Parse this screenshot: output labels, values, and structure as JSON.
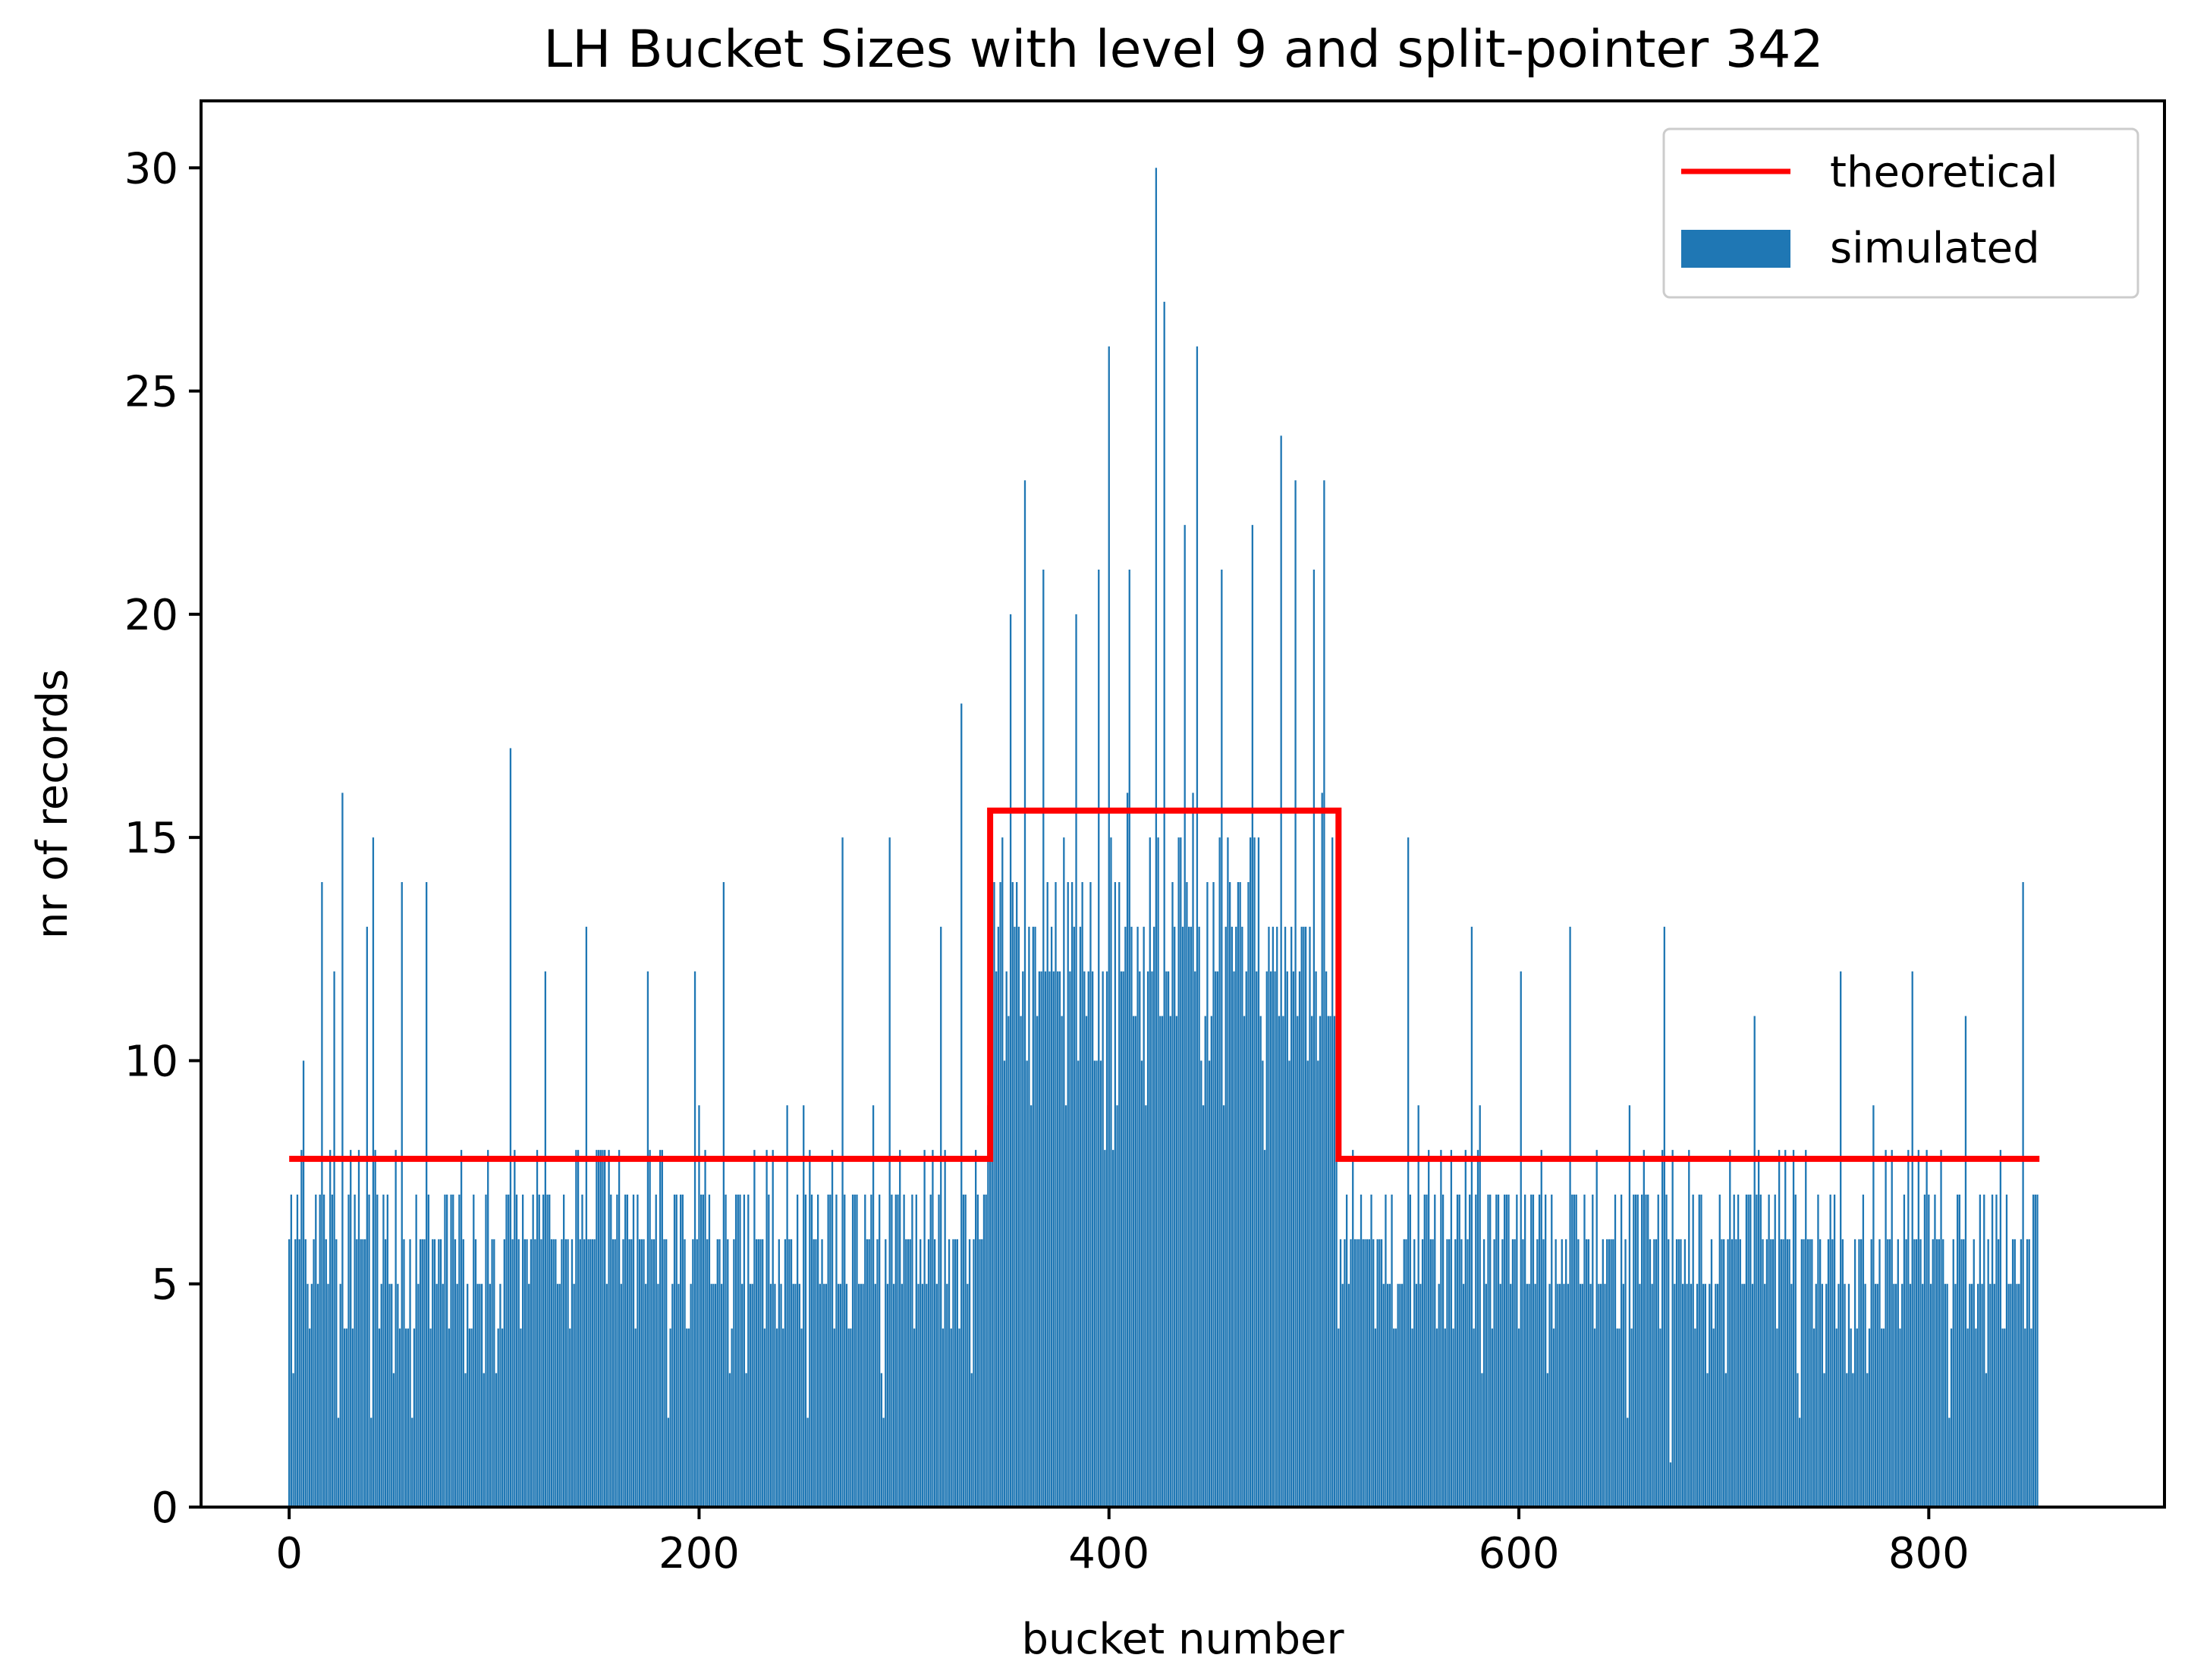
{
  "chart_data": {
    "type": "bar",
    "title": "LH Bucket Sizes with level 9 and split-pointer 342",
    "xlabel": "bucket number",
    "ylabel": "nr of records",
    "xlim": [
      -43,
      915
    ],
    "ylim": [
      0,
      31.5
    ],
    "xticks": [
      "0",
      "200",
      "400",
      "600",
      "800"
    ],
    "xtick_values": [
      0,
      200,
      400,
      600,
      800
    ],
    "yticks": [
      "0",
      "5",
      "10",
      "15",
      "20",
      "25",
      "30"
    ],
    "ytick_values": [
      0,
      5,
      10,
      15,
      20,
      25,
      30
    ],
    "grid": false,
    "legend_position": "top-right",
    "bucket_count": 854,
    "colors": {
      "bars": "#1f77b4",
      "line": "#ff0000"
    },
    "series": [
      {
        "name": "theoretical",
        "type": "step-line",
        "segments": [
          {
            "x_start": 0,
            "x_end": 342,
            "y": 7.8
          },
          {
            "x_start": 342,
            "x_end": 512,
            "y": 15.6
          },
          {
            "x_start": 512,
            "x_end": 854,
            "y": 7.8
          }
        ]
      },
      {
        "name": "simulated",
        "type": "bar",
        "regions": [
          {
            "x_start": 0,
            "x_end": 342,
            "floor": 3,
            "typical_high": 9,
            "mean": 7.8
          },
          {
            "x_start": 342,
            "x_end": 512,
            "floor": 8,
            "typical_high": 17,
            "mean": 15.6
          },
          {
            "x_start": 512,
            "x_end": 854,
            "floor": 3,
            "typical_high": 9,
            "mean": 7.8
          }
        ],
        "peaks": [
          {
            "x": 0,
            "y": 6
          },
          {
            "x": 2,
            "y": 3
          },
          {
            "x": 4,
            "y": 7
          },
          {
            "x": 7,
            "y": 10
          },
          {
            "x": 10,
            "y": 4
          },
          {
            "x": 16,
            "y": 14
          },
          {
            "x": 22,
            "y": 12
          },
          {
            "x": 24,
            "y": 2
          },
          {
            "x": 26,
            "y": 16
          },
          {
            "x": 38,
            "y": 13
          },
          {
            "x": 40,
            "y": 2
          },
          {
            "x": 41,
            "y": 15
          },
          {
            "x": 55,
            "y": 14
          },
          {
            "x": 60,
            "y": 2
          },
          {
            "x": 67,
            "y": 14
          },
          {
            "x": 86,
            "y": 3
          },
          {
            "x": 108,
            "y": 17
          },
          {
            "x": 125,
            "y": 12
          },
          {
            "x": 145,
            "y": 13
          },
          {
            "x": 175,
            "y": 12
          },
          {
            "x": 185,
            "y": 2
          },
          {
            "x": 198,
            "y": 12
          },
          {
            "x": 212,
            "y": 14
          },
          {
            "x": 215,
            "y": 3
          },
          {
            "x": 243,
            "y": 9
          },
          {
            "x": 253,
            "y": 2
          },
          {
            "x": 270,
            "y": 15
          },
          {
            "x": 290,
            "y": 2
          },
          {
            "x": 293,
            "y": 15
          },
          {
            "x": 318,
            "y": 13
          },
          {
            "x": 328,
            "y": 18
          },
          {
            "x": 333,
            "y": 3
          },
          {
            "x": 352,
            "y": 20
          },
          {
            "x": 359,
            "y": 23
          },
          {
            "x": 362,
            "y": 9
          },
          {
            "x": 368,
            "y": 21
          },
          {
            "x": 384,
            "y": 20
          },
          {
            "x": 395,
            "y": 21
          },
          {
            "x": 398,
            "y": 8
          },
          {
            "x": 400,
            "y": 26
          },
          {
            "x": 410,
            "y": 21
          },
          {
            "x": 418,
            "y": 9
          },
          {
            "x": 423,
            "y": 30
          },
          {
            "x": 427,
            "y": 27
          },
          {
            "x": 437,
            "y": 22
          },
          {
            "x": 443,
            "y": 26
          },
          {
            "x": 446,
            "y": 9
          },
          {
            "x": 455,
            "y": 21
          },
          {
            "x": 470,
            "y": 22
          },
          {
            "x": 476,
            "y": 8
          },
          {
            "x": 484,
            "y": 24
          },
          {
            "x": 491,
            "y": 23
          },
          {
            "x": 500,
            "y": 21
          },
          {
            "x": 505,
            "y": 23
          },
          {
            "x": 530,
            "y": 4
          },
          {
            "x": 546,
            "y": 15
          },
          {
            "x": 548,
            "y": 4
          },
          {
            "x": 577,
            "y": 13
          },
          {
            "x": 582,
            "y": 3
          },
          {
            "x": 601,
            "y": 12
          },
          {
            "x": 617,
            "y": 4
          },
          {
            "x": 625,
            "y": 13
          },
          {
            "x": 653,
            "y": 2
          },
          {
            "x": 671,
            "y": 13
          },
          {
            "x": 674,
            "y": 1
          },
          {
            "x": 701,
            "y": 3
          },
          {
            "x": 715,
            "y": 11
          },
          {
            "x": 737,
            "y": 2
          },
          {
            "x": 757,
            "y": 12
          },
          {
            "x": 770,
            "y": 3
          },
          {
            "x": 792,
            "y": 12
          },
          {
            "x": 810,
            "y": 2
          },
          {
            "x": 818,
            "y": 11
          },
          {
            "x": 846,
            "y": 14
          },
          {
            "x": 849,
            "y": 6
          }
        ]
      }
    ]
  }
}
